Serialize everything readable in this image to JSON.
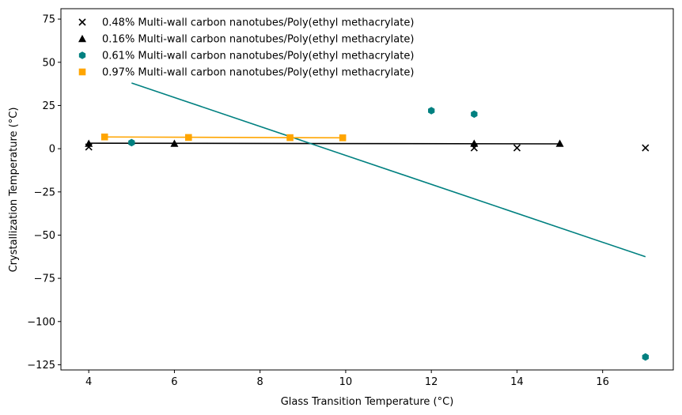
{
  "chart_data": {
    "type": "scatter",
    "title": "",
    "xlabel": "Glass Transition Temperature (°C)",
    "ylabel": "Crystallization Temperature (°C)",
    "xlim": [
      3.35,
      17.65
    ],
    "ylim": [
      -128,
      81
    ],
    "xticks": [
      4,
      6,
      8,
      10,
      12,
      14,
      16
    ],
    "yticks": [
      75,
      50,
      25,
      0,
      -25,
      -50,
      -75,
      -100,
      -125
    ],
    "grid": false,
    "legend_position": "top-left",
    "series": [
      {
        "name": "0.48% Multi-wall carbon nanotubes/Poly(ethyl methacrylate)",
        "marker": "x",
        "color": "#000000",
        "points": [
          [
            4,
            1
          ],
          [
            13,
            0.5
          ],
          [
            14,
            0.5
          ],
          [
            17,
            0.5
          ]
        ],
        "fit": null
      },
      {
        "name": "0.16% Multi-wall carbon nanotubes/Poly(ethyl methacrylate)",
        "marker": "triangle",
        "color": "#000000",
        "points": [
          [
            4,
            3
          ],
          [
            6,
            3
          ],
          [
            13,
            3
          ],
          [
            15,
            3
          ]
        ],
        "fit": {
          "x": [
            4,
            15
          ],
          "y": [
            3.2,
            2.8
          ]
        }
      },
      {
        "name": "0.61% Multi-wall carbon nanotubes/Poly(ethyl methacrylate)",
        "marker": "hexagon",
        "color": "#008080",
        "points": [
          [
            5,
            3.5
          ],
          [
            12,
            22
          ],
          [
            13,
            20
          ],
          [
            17,
            -120.5
          ]
        ],
        "fit": {
          "x": [
            5,
            17
          ],
          "y": [
            38,
            -62.5
          ]
        }
      },
      {
        "name": "0.97% Multi-wall carbon nanotubes/Poly(ethyl methacrylate)",
        "marker": "square",
        "color": "#FFA500",
        "points": [
          [
            4.37,
            6.8
          ],
          [
            6.33,
            6.5
          ],
          [
            8.7,
            6.4
          ],
          [
            9.93,
            6.3
          ]
        ],
        "fit": {
          "x": [
            4.37,
            9.93
          ],
          "y": [
            6.8,
            6.3
          ]
        }
      }
    ]
  }
}
